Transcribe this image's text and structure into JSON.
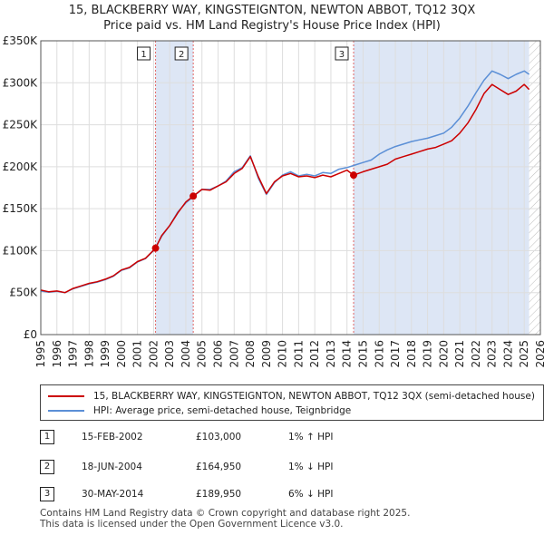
{
  "titles": {
    "line1": "15, BLACKBERRY WAY, KINGSTEIGNTON, NEWTON ABBOT, TQ12 3QX",
    "line2": "Price paid vs. HM Land Registry's House Price Index (HPI)"
  },
  "colors": {
    "property": "#cc0000",
    "hpi": "#5b8fd6",
    "shade": "#dde6f5",
    "grid": "#dddddd",
    "marker_line": "#e06666"
  },
  "chart_data": {
    "type": "line",
    "title": "Price paid vs. HM Land Registry's House Price Index (HPI)",
    "xlabel": "",
    "ylabel": "",
    "xlim": [
      1995,
      2026
    ],
    "ylim": [
      0,
      350000
    ],
    "x_ticks": [
      "1995",
      "1996",
      "1997",
      "1998",
      "1999",
      "2000",
      "2001",
      "2002",
      "2003",
      "2004",
      "2005",
      "2006",
      "2007",
      "2008",
      "2009",
      "2010",
      "2011",
      "2012",
      "2013",
      "2014",
      "2015",
      "2016",
      "2017",
      "2018",
      "2019",
      "2020",
      "2021",
      "2022",
      "2023",
      "2024",
      "2025",
      "2026"
    ],
    "y_ticks": [
      "£0",
      "£50K",
      "£100K",
      "£150K",
      "£200K",
      "£250K",
      "£300K",
      "£350K"
    ],
    "y_tick_values": [
      0,
      50000,
      100000,
      150000,
      200000,
      250000,
      300000,
      350000
    ],
    "grid": true,
    "series": [
      {
        "name": "15, BLACKBERRY WAY, KINGSTEIGNTON, NEWTON ABBOT, TQ12 3QX (semi-detached house)",
        "x": [
          1995.0,
          1995.5,
          1996.0,
          1996.5,
          1997.0,
          1997.5,
          1998.0,
          1998.5,
          1999.0,
          1999.5,
          2000.0,
          2000.5,
          2001.0,
          2001.5,
          2002.12,
          2002.5,
          2003.0,
          2003.5,
          2004.0,
          2004.46,
          2005.0,
          2005.5,
          2006.0,
          2006.5,
          2007.0,
          2007.5,
          2008.0,
          2008.5,
          2009.0,
          2009.5,
          2010.0,
          2010.5,
          2011.0,
          2011.5,
          2012.0,
          2012.5,
          2013.0,
          2013.5,
          2014.0,
          2014.41,
          2015.0,
          2015.5,
          2016.0,
          2016.5,
          2017.0,
          2017.5,
          2018.0,
          2018.5,
          2019.0,
          2019.5,
          2020.0,
          2020.5,
          2021.0,
          2021.5,
          2022.0,
          2022.5,
          2023.0,
          2023.5,
          2024.0,
          2024.5,
          2025.0,
          2025.3
        ],
        "values": [
          53000,
          51000,
          52000,
          50000,
          55000,
          58000,
          61000,
          63000,
          66000,
          70000,
          77000,
          80000,
          87000,
          91000,
          103000,
          118000,
          130000,
          145000,
          158000,
          164950,
          173000,
          172000,
          177000,
          182000,
          192000,
          198000,
          212000,
          188000,
          168000,
          182000,
          189000,
          192000,
          188000,
          189000,
          187000,
          190000,
          188000,
          192000,
          196000,
          189950,
          194000,
          197000,
          200000,
          203000,
          209000,
          212000,
          215000,
          218000,
          221000,
          223000,
          227000,
          231000,
          240000,
          252000,
          268000,
          287000,
          298000,
          292000,
          286000,
          290000,
          298000,
          292000
        ]
      },
      {
        "name": "HPI: Average price, semi-detached house, Teignbridge",
        "x": [
          1995.0,
          1995.5,
          1996.0,
          1996.5,
          1997.0,
          1997.5,
          1998.0,
          1998.5,
          1999.0,
          1999.5,
          2000.0,
          2000.5,
          2001.0,
          2001.5,
          2002.0,
          2002.5,
          2003.0,
          2003.5,
          2004.0,
          2004.5,
          2005.0,
          2005.5,
          2006.0,
          2006.5,
          2007.0,
          2007.5,
          2008.0,
          2008.5,
          2009.0,
          2009.5,
          2010.0,
          2010.5,
          2011.0,
          2011.5,
          2012.0,
          2012.5,
          2013.0,
          2013.5,
          2014.0,
          2014.5,
          2015.0,
          2015.5,
          2016.0,
          2016.5,
          2017.0,
          2017.5,
          2018.0,
          2018.5,
          2019.0,
          2019.5,
          2020.0,
          2020.5,
          2021.0,
          2021.5,
          2022.0,
          2022.5,
          2023.0,
          2023.5,
          2024.0,
          2024.5,
          2025.0,
          2025.3
        ],
        "values": [
          52000,
          50500,
          51500,
          50000,
          54500,
          57500,
          60500,
          62500,
          65500,
          69500,
          76500,
          79500,
          86500,
          90500,
          100000,
          117000,
          130000,
          146000,
          157000,
          165000,
          173000,
          173000,
          177000,
          183000,
          194000,
          199000,
          213000,
          186000,
          167000,
          181000,
          190000,
          194000,
          189000,
          191000,
          189000,
          193000,
          192000,
          197000,
          199000,
          202000,
          205000,
          208000,
          215000,
          220000,
          224000,
          227000,
          230000,
          232000,
          234000,
          237000,
          240000,
          247000,
          258000,
          272000,
          288000,
          303000,
          314000,
          310000,
          305000,
          310000,
          314000,
          310000
        ]
      }
    ],
    "sales": [
      {
        "n": "1",
        "x": 2002.12,
        "value": 103000
      },
      {
        "n": "2",
        "x": 2004.46,
        "value": 164950
      },
      {
        "n": "3",
        "x": 2014.41,
        "value": 189950
      }
    ]
  },
  "legend": {
    "property_label": "15, BLACKBERRY WAY, KINGSTEIGNTON, NEWTON ABBOT, TQ12 3QX (semi-detached house)",
    "hpi_label": "HPI: Average price, semi-detached house, Teignbridge"
  },
  "table": {
    "rows": [
      {
        "n": "1",
        "date": "15-FEB-2002",
        "price": "£103,000",
        "hpi": "1% ↑ HPI"
      },
      {
        "n": "2",
        "date": "18-JUN-2004",
        "price": "£164,950",
        "hpi": "1% ↓ HPI"
      },
      {
        "n": "3",
        "date": "30-MAY-2014",
        "price": "£189,950",
        "hpi": "6% ↓ HPI"
      }
    ]
  },
  "footer": {
    "line1": "Contains HM Land Registry data © Crown copyright and database right 2025.",
    "line2": "This data is licensed under the Open Government Licence v3.0."
  }
}
